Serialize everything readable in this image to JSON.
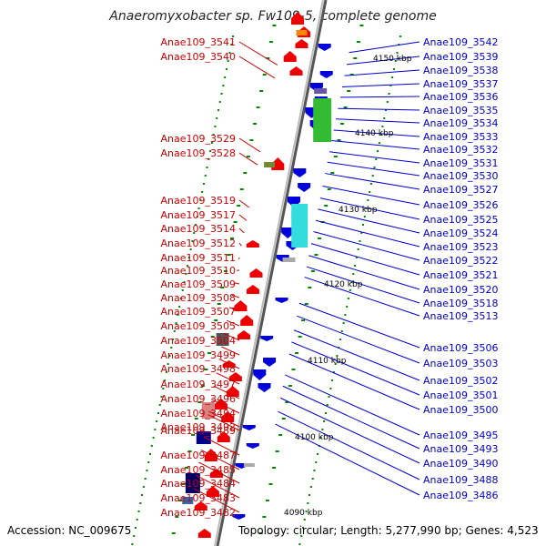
{
  "title": "Anaeromyxobacter sp. Fw109-5, complete genome",
  "footer": {
    "accession": "Accession: NC_009675",
    "topology": "Topology: circular; Length: 5,277,990 bp; Genes: 4,523"
  },
  "colors": {
    "forward": "#ee0000",
    "reverse": "#0000dd",
    "ticks": "#008800",
    "left_label": "#cc0000",
    "right_label": "#0000cc"
  },
  "kbp_marks": [
    "4150 kbp",
    "4140 kbp",
    "4130 kbp",
    "4120 kbp",
    "4110 kbp",
    "4100 kbp",
    "4090 kbp"
  ],
  "left_genes": [
    "Anae109_3541",
    "Anae109_3540",
    "Anae109_3529",
    "Anae109_3528",
    "Anae109_3519",
    "Anae109_3517",
    "Anae109_3514",
    "Anae109_3512",
    "Anae109_3511",
    "Anae109_3510",
    "Anae109_3509",
    "Anae109_3508",
    "Anae109_3507",
    "Anae109_3505",
    "Anae109_3504",
    "Anae109_3499",
    "Anae109_3498",
    "Anae109_3497",
    "Anae109_3496",
    "Anae109_3494",
    "Anae109_3492",
    "Anae109_3489",
    "Anae109_3487",
    "Anae109_3485",
    "Anae109_3484",
    "Anae109_3483",
    "Anae109_3482"
  ],
  "right_genes": [
    "Anae109_3542",
    "Anae109_3539",
    "Anae109_3538",
    "Anae109_3537",
    "Anae109_3536",
    "Anae109_3535",
    "Anae109_3534",
    "Anae109_3533",
    "Anae109_3532",
    "Anae109_3531",
    "Anae109_3530",
    "Anae109_3527",
    "Anae109_3526",
    "Anae109_3525",
    "Anae109_3524",
    "Anae109_3523",
    "Anae109_3522",
    "Anae109_3521",
    "Anae109_3520",
    "Anae109_3518",
    "Anae109_3513",
    "Anae109_3506",
    "Anae109_3503",
    "Anae109_3502",
    "Anae109_3501",
    "Anae109_3500",
    "Anae109_3495",
    "Anae109_3493",
    "Anae109_3490",
    "Anae109_3488",
    "Anae109_3486"
  ]
}
